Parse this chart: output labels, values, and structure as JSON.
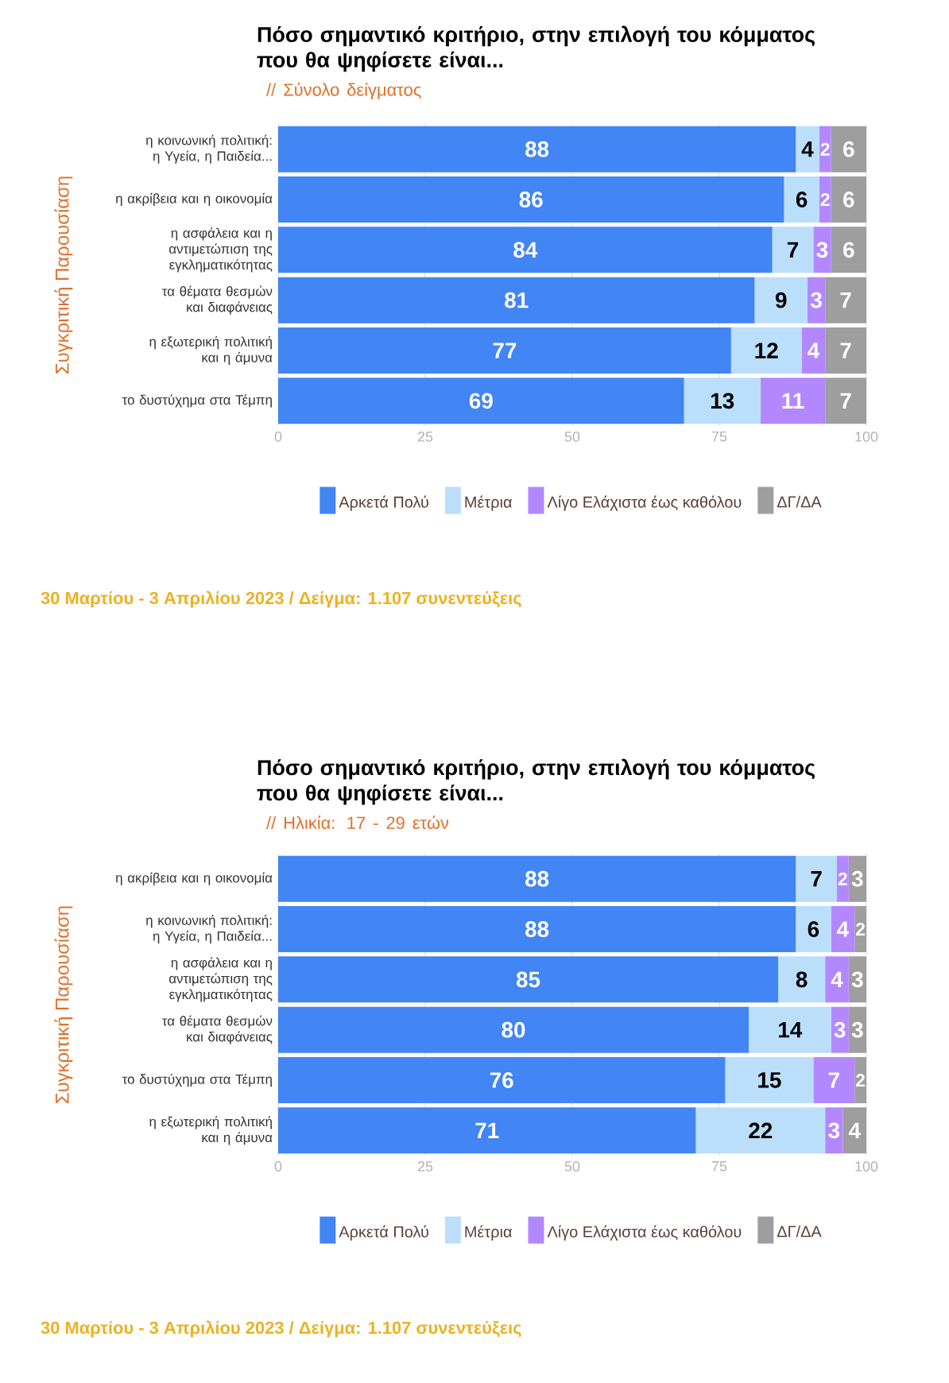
{
  "chart_data": [
    {
      "type": "bar",
      "orientation": "horizontal",
      "stacked": true,
      "data_labels": true,
      "grid": "x",
      "legend": "bottom",
      "title": "Πόσο σημαντικό κριτήριο, στην επιλογή του κόμματος που θα ψηφίσετε είναι...",
      "subtitle": "// Σύνολο δείγματος",
      "ylabel": "Συγκριτική  Παρουσίαση",
      "annotations": [
        "30 Μαρτίου - 3  Απριλίου  2023  /  Δείγμα:  1.107 συνεντεύξεις"
      ],
      "categories": [
        "η κοινωνική πολιτική: η Υγεία, η Παιδεία...",
        "η ακρίβεια και η οικονομία",
        "η ασφάλεια και η αντιμετώπιση της εγκληματικότητας",
        "τα θέματα θεσμών και διαφάνειας",
        "η εξωτερική πολιτική και η άμυνα",
        "το δυστύχημα στα Τέμπη"
      ],
      "xlim": [
        0,
        100
      ],
      "xticks": [
        0,
        25,
        50,
        75,
        100
      ],
      "series": [
        {
          "name": "Αρκετά Πολύ",
          "color": "#4285f4",
          "values": [
            88,
            86,
            84,
            81,
            77,
            69
          ]
        },
        {
          "name": "Μέτρια",
          "color": "#bbdefb",
          "values": [
            4,
            6,
            7,
            9,
            12,
            13
          ]
        },
        {
          "name": "Λίγο Ελάχιστα έως καθόλου",
          "color": "#b388ff",
          "values": [
            2,
            2,
            3,
            3,
            4,
            11
          ]
        },
        {
          "name": "ΔΓ/ΔΑ",
          "color": "#9e9e9e",
          "values": [
            6,
            6,
            6,
            7,
            7,
            7
          ]
        }
      ]
    },
    {
      "type": "bar",
      "orientation": "horizontal",
      "stacked": true,
      "data_labels": true,
      "grid": "x",
      "legend": "bottom",
      "title": "Πόσο σημαντικό κριτήριο, στην επιλογή του κόμματος που θα ψηφίσετε είναι...",
      "subtitle": "// Ηλικία: 17 - 29 ετών",
      "ylabel": "Συγκριτική  Παρουσίαση",
      "annotations": [
        "30 Μαρτίου - 3  Απριλίου  2023  /  Δείγμα:  1.107 συνεντεύξεις"
      ],
      "categories": [
        "η ακρίβεια και η οικονομία",
        "η κοινωνική πολιτική: η Υγεία, η Παιδεία...",
        "η ασφάλεια και η αντιμετώπιση της εγκληματικότητας",
        "τα θέματα θεσμών και διαφάνειας",
        "το δυστύχημα στα Τέμπη",
        "η εξωτερική πολιτική και η άμυνα"
      ],
      "xlim": [
        0,
        100
      ],
      "xticks": [
        0,
        25,
        50,
        75,
        100
      ],
      "series": [
        {
          "name": "Αρκετά Πολύ",
          "color": "#4285f4",
          "values": [
            88,
            88,
            85,
            80,
            76,
            71
          ]
        },
        {
          "name": "Μέτρια",
          "color": "#bbdefb",
          "values": [
            7,
            6,
            8,
            14,
            15,
            22
          ]
        },
        {
          "name": "Λίγο Ελάχιστα έως καθόλου",
          "color": "#b388ff",
          "values": [
            2,
            4,
            4,
            3,
            7,
            3
          ]
        },
        {
          "name": "ΔΓ/ΔΑ",
          "color": "#9e9e9e",
          "values": [
            3,
            2,
            3,
            3,
            2,
            4
          ]
        }
      ]
    }
  ]
}
